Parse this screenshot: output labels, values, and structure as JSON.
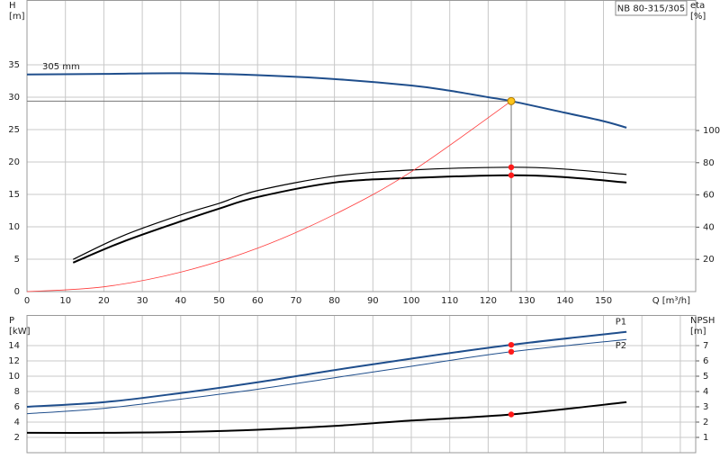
{
  "chart_data": [
    {
      "type": "line",
      "title": "NB 80-315/305",
      "x_label": "Q [m³/h]",
      "y_label": "H",
      "y_unit": "[m]",
      "y2_label": "eta",
      "y2_unit": "[%]",
      "xlim": [
        0,
        174
      ],
      "xticks": [
        0,
        10,
        20,
        30,
        40,
        50,
        60,
        70,
        80,
        90,
        100,
        110,
        120,
        130,
        140,
        150
      ],
      "ylim": [
        0,
        45
      ],
      "yticks": [
        0,
        5,
        10,
        15,
        20,
        25,
        30,
        35
      ],
      "y2lim": [
        0,
        181
      ],
      "y2ticks": [
        20,
        40,
        60,
        80,
        100
      ],
      "grid": true,
      "series": [
        {
          "name": "305 mm",
          "name_position": "start",
          "color": "#1f4e8c",
          "line_width": 2,
          "x": [
            0,
            20,
            40,
            60,
            80,
            100,
            110,
            120,
            126,
            140,
            150,
            156
          ],
          "values": [
            33.5,
            33.6,
            33.7,
            33.4,
            32.8,
            31.8,
            31.0,
            30.0,
            29.4,
            27.6,
            26.3,
            25.3
          ]
        },
        {
          "color": "#000000",
          "line_width": 1.2,
          "axis": "y2",
          "x": [
            12,
            25,
            40,
            50,
            60,
            80,
            100,
            126,
            140,
            156
          ],
          "values": [
            20,
            34.7,
            47.6,
            54.8,
            62.7,
            71.6,
            75.5,
            77.2,
            76,
            72.7
          ]
        },
        {
          "color": "#000000",
          "line_width": 2,
          "axis": "y2",
          "x": [
            12,
            25,
            40,
            50,
            60,
            80,
            100,
            126,
            140,
            156
          ],
          "values": [
            18,
            31,
            43.6,
            51.5,
            58.7,
            67.7,
            70.5,
            72.2,
            71,
            67.7
          ]
        },
        {
          "color": "#ff3b3b",
          "line_width": 0.8,
          "x": [
            0,
            20,
            40,
            60,
            80,
            100,
            126
          ],
          "values": [
            0,
            0.74,
            3.0,
            6.7,
            11.9,
            18.5,
            29.4
          ]
        }
      ],
      "points": [
        {
          "x": 126,
          "y": 29.4,
          "color": "#ffc61a",
          "guides": true
        },
        {
          "x": 126,
          "y": 77.2,
          "axis": "y2",
          "color": "#ff1a1a"
        },
        {
          "x": 126,
          "y": 72.2,
          "axis": "y2",
          "color": "#ff1a1a"
        }
      ]
    },
    {
      "type": "line",
      "y_label": "P",
      "y_unit": "[kW]",
      "y2_label": "NPSH",
      "y2_unit": "[m]",
      "xlim": [
        0,
        174
      ],
      "xticks": [
        0,
        10,
        20,
        30,
        40,
        50,
        60,
        70,
        80,
        90,
        100,
        110,
        120,
        130,
        140,
        150,
        160,
        170
      ],
      "show_xtick_labels": false,
      "ylim": [
        0,
        18
      ],
      "yticks": [
        2,
        4,
        6,
        8,
        10,
        12,
        14
      ],
      "y2lim": [
        0,
        9
      ],
      "y2ticks": [
        1,
        2,
        3,
        4,
        5,
        6,
        7
      ],
      "grid": true,
      "series": [
        {
          "name": "P1",
          "name_position": "end-above",
          "color": "#1f4e8c",
          "line_width": 2,
          "x": [
            0,
            20,
            40,
            60,
            80,
            100,
            126,
            156
          ],
          "values": [
            6,
            6.6,
            7.8,
            9.2,
            10.8,
            12.3,
            14.1,
            15.8
          ]
        },
        {
          "name": "P2",
          "name_position": "end-below",
          "color": "#1f4e8c",
          "line_width": 1,
          "x": [
            0,
            20,
            40,
            60,
            80,
            100,
            126,
            156
          ],
          "values": [
            5.1,
            5.8,
            7.0,
            8.3,
            9.8,
            11.3,
            13.2,
            14.8
          ]
        },
        {
          "color": "#000000",
          "line_width": 2,
          "axis": "y2",
          "x": [
            0,
            20,
            40,
            60,
            80,
            100,
            126,
            156
          ],
          "values": [
            1.3,
            1.3,
            1.35,
            1.5,
            1.75,
            2.1,
            2.5,
            3.3
          ]
        }
      ],
      "points": [
        {
          "x": 126,
          "y": 14.1,
          "color": "#ff1a1a"
        },
        {
          "x": 126,
          "y": 13.2,
          "color": "#ff1a1a"
        },
        {
          "x": 126,
          "y": 2.5,
          "axis": "y2",
          "color": "#ff1a1a"
        }
      ]
    }
  ]
}
